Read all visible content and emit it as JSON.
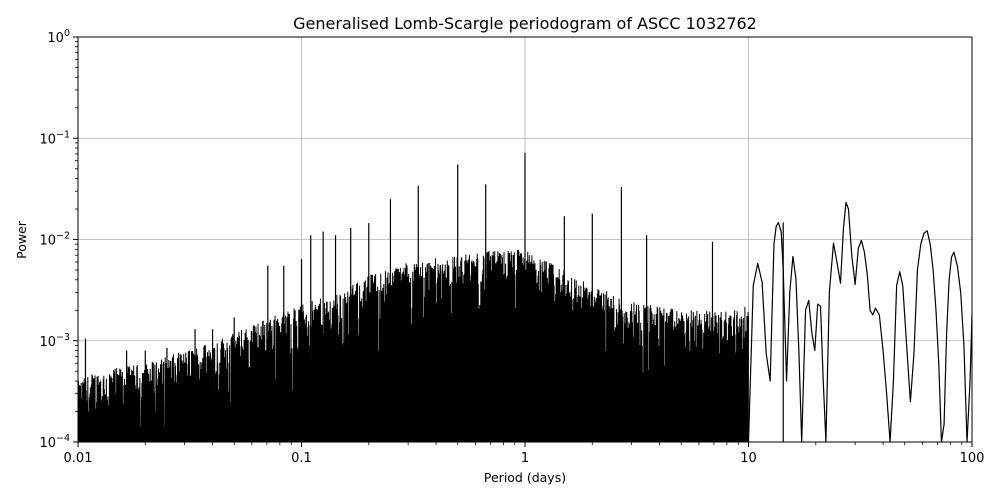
{
  "chart_data": {
    "type": "line",
    "title": "Generalised Lomb-Scargle periodogram of ASCC 1032762",
    "xlabel": "Period (days)",
    "ylabel": "Power",
    "xscale": "log",
    "yscale": "log",
    "xlim": [
      0.01,
      100
    ],
    "ylim": [
      0.0001,
      1
    ],
    "grid": true,
    "line_color": "#000000",
    "x_ticks": [
      {
        "value": 0.01,
        "label": "0.01"
      },
      {
        "value": 0.1,
        "label": "0.1"
      },
      {
        "value": 1,
        "label": "1"
      },
      {
        "value": 10,
        "label": "10"
      },
      {
        "value": 100,
        "label": "100"
      }
    ],
    "y_ticks": [
      {
        "value": 0.0001,
        "base": "10",
        "exp": "−4"
      },
      {
        "value": 0.001,
        "base": "10",
        "exp": "−3"
      },
      {
        "value": 0.01,
        "base": "10",
        "exp": "−2"
      },
      {
        "value": 0.1,
        "base": "10",
        "exp": "−1"
      },
      {
        "value": 1,
        "base": "10",
        "exp": "0"
      }
    ],
    "envelope": {
      "x": [
        0.01,
        0.012,
        0.02,
        0.03,
        0.05,
        0.07,
        0.1,
        0.15,
        0.2,
        0.3,
        0.5,
        0.8,
        1,
        1.5,
        2,
        3,
        5,
        8,
        10
      ],
      "upper": [
        0.0004,
        0.0005,
        0.0006,
        0.0008,
        0.0012,
        0.0017,
        0.0023,
        0.003,
        0.0045,
        0.006,
        0.007,
        0.008,
        0.008,
        0.005,
        0.0035,
        0.0025,
        0.002,
        0.002,
        0.0022
      ]
    },
    "peaks": [
      {
        "x": 0.0108,
        "y": 0.00105
      },
      {
        "x": 0.0165,
        "y": 0.0008
      },
      {
        "x": 0.02,
        "y": 0.0008
      },
      {
        "x": 0.025,
        "y": 0.00085
      },
      {
        "x": 0.0334,
        "y": 0.0013
      },
      {
        "x": 0.04,
        "y": 0.0013
      },
      {
        "x": 0.05,
        "y": 0.0017
      },
      {
        "x": 0.0707,
        "y": 0.0055
      },
      {
        "x": 0.0833,
        "y": 0.0055
      },
      {
        "x": 0.1,
        "y": 0.0064
      },
      {
        "x": 0.11,
        "y": 0.011
      },
      {
        "x": 0.125,
        "y": 0.012
      },
      {
        "x": 0.142,
        "y": 0.011
      },
      {
        "x": 0.166,
        "y": 0.013
      },
      {
        "x": 0.2,
        "y": 0.0145
      },
      {
        "x": 0.25,
        "y": 0.025
      },
      {
        "x": 0.333,
        "y": 0.034
      },
      {
        "x": 0.5,
        "y": 0.055
      },
      {
        "x": 0.667,
        "y": 0.035
      },
      {
        "x": 1.0,
        "y": 0.072
      },
      {
        "x": 1.5,
        "y": 0.017
      },
      {
        "x": 2.0,
        "y": 0.018
      },
      {
        "x": 2.7,
        "y": 0.033
      },
      {
        "x": 3.5,
        "y": 0.011
      },
      {
        "x": 6.9,
        "y": 0.0095
      },
      {
        "x": 14.3,
        "y": 0.0147
      }
    ],
    "smooth_tail": {
      "x": [
        10,
        10.5,
        11,
        11.5,
        12,
        12.5,
        13,
        13.3,
        13.6,
        14,
        14.3,
        14.8,
        15.3,
        15.8,
        16.3,
        16.8,
        17.3,
        18,
        18.6,
        19.2,
        19.8,
        20.4,
        21,
        21.6,
        22.2,
        23,
        24,
        25,
        25.8,
        26.6,
        27.3,
        28,
        29,
        30,
        31,
        32,
        33,
        34,
        35,
        36,
        37,
        38.5,
        40,
        41.5,
        43,
        44.5,
        46,
        47.5,
        49,
        51,
        53,
        55,
        57,
        59,
        61,
        63,
        65,
        67,
        69,
        71,
        73,
        75,
        77,
        79,
        81,
        83,
        86,
        89,
        92,
        95,
        98,
        100
      ],
      "y": [
        0.0001,
        0.0035,
        0.0058,
        0.0038,
        0.00075,
        0.0004,
        0.009,
        0.0135,
        0.0147,
        0.012,
        0.005,
        0.0004,
        0.003,
        0.0068,
        0.0041,
        0.0008,
        0.0001,
        0.002,
        0.0025,
        0.0012,
        0.0008,
        0.0023,
        0.0022,
        0.0004,
        0.0001,
        0.003,
        0.0092,
        0.0056,
        0.0037,
        0.013,
        0.0232,
        0.02,
        0.0068,
        0.0036,
        0.0082,
        0.0098,
        0.0075,
        0.0045,
        0.002,
        0.0018,
        0.0021,
        0.0018,
        0.0008,
        0.0003,
        0.0001,
        0.0004,
        0.0035,
        0.0048,
        0.0035,
        0.0009,
        0.00025,
        0.00075,
        0.005,
        0.009,
        0.0115,
        0.0122,
        0.009,
        0.005,
        0.002,
        0.0006,
        0.0001,
        0.00015,
        0.0012,
        0.004,
        0.0067,
        0.0075,
        0.0055,
        0.003,
        0.0009,
        0.0001,
        0.0004,
        0.0018
      ]
    }
  }
}
